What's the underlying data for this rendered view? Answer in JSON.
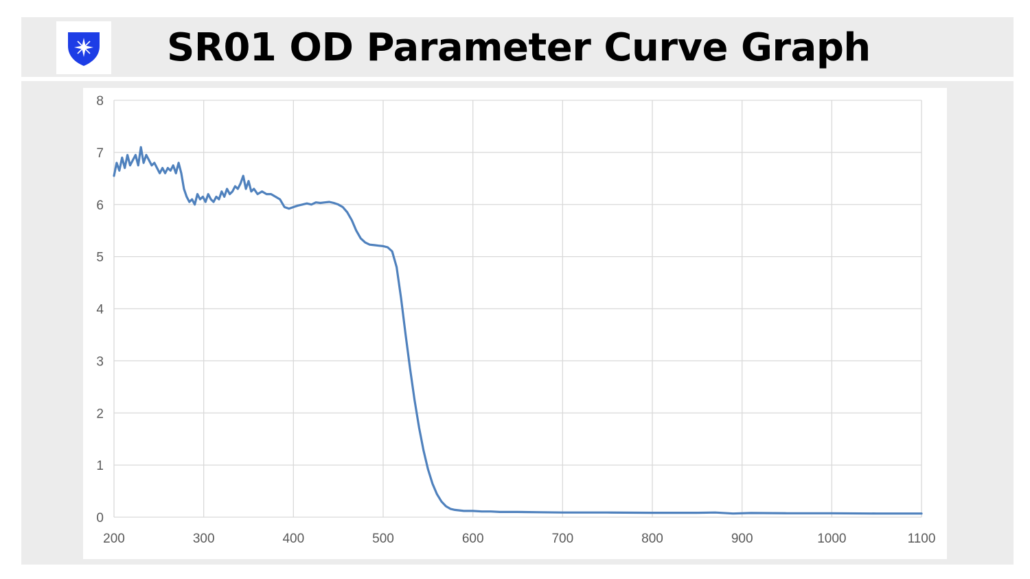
{
  "header": {
    "title": "SR01 OD Parameter Curve Graph",
    "logo_icon": "shield-sparkle-icon",
    "logo_color": "#1d3de6"
  },
  "colors": {
    "line": "#4f81bd",
    "grid": "#d9d9d9",
    "band": "#ececec"
  },
  "chart_data": {
    "type": "line",
    "title": "",
    "xlabel": "",
    "ylabel": "",
    "xlim": [
      200,
      1100
    ],
    "ylim": [
      0,
      8
    ],
    "x_ticks": [
      "200",
      "300",
      "400",
      "500",
      "600",
      "700",
      "800",
      "900",
      "1000",
      "1100"
    ],
    "y_ticks": [
      "0",
      "1",
      "2",
      "3",
      "4",
      "5",
      "6",
      "7",
      "8"
    ],
    "grid": true,
    "legend": "none",
    "series": [
      {
        "x": [
          200,
          203,
          206,
          209,
          212,
          215,
          218,
          221,
          224,
          227,
          230,
          233,
          236,
          239,
          242,
          245,
          248,
          251,
          254,
          257,
          260,
          263,
          266,
          269,
          272,
          275,
          278,
          281,
          284,
          287,
          290,
          293,
          296,
          299,
          302,
          305,
          308,
          311,
          314,
          317,
          320,
          323,
          326,
          329,
          332,
          335,
          338,
          341,
          344,
          347,
          350,
          353,
          356,
          360,
          365,
          370,
          375,
          380,
          385,
          390,
          395,
          400,
          405,
          410,
          415,
          420,
          425,
          430,
          435,
          440,
          445,
          450,
          455,
          460,
          465,
          470,
          475,
          480,
          485,
          490,
          495,
          500,
          505,
          510,
          515,
          520,
          525,
          530,
          535,
          540,
          545,
          550,
          555,
          560,
          565,
          570,
          575,
          580,
          585,
          590,
          595,
          600,
          610,
          620,
          630,
          640,
          650,
          675,
          700,
          750,
          800,
          850,
          870,
          890,
          910,
          950,
          1000,
          1050,
          1100
        ],
        "y": [
          6.55,
          6.8,
          6.65,
          6.9,
          6.7,
          6.95,
          6.75,
          6.85,
          6.95,
          6.75,
          7.1,
          6.8,
          6.95,
          6.85,
          6.75,
          6.8,
          6.7,
          6.6,
          6.7,
          6.6,
          6.7,
          6.65,
          6.75,
          6.6,
          6.8,
          6.6,
          6.3,
          6.15,
          6.05,
          6.1,
          6.0,
          6.2,
          6.1,
          6.15,
          6.05,
          6.2,
          6.1,
          6.05,
          6.15,
          6.1,
          6.25,
          6.15,
          6.3,
          6.2,
          6.25,
          6.35,
          6.3,
          6.4,
          6.55,
          6.3,
          6.45,
          6.25,
          6.3,
          6.2,
          6.25,
          6.2,
          6.2,
          6.15,
          6.1,
          5.95,
          5.92,
          5.95,
          5.98,
          6.0,
          6.02,
          6.0,
          6.04,
          6.03,
          6.04,
          6.05,
          6.03,
          6.0,
          5.95,
          5.85,
          5.7,
          5.5,
          5.35,
          5.27,
          5.23,
          5.22,
          5.21,
          5.2,
          5.18,
          5.1,
          4.8,
          4.2,
          3.5,
          2.85,
          2.25,
          1.72,
          1.28,
          0.92,
          0.64,
          0.44,
          0.3,
          0.21,
          0.16,
          0.14,
          0.13,
          0.12,
          0.12,
          0.12,
          0.11,
          0.11,
          0.1,
          0.1,
          0.1,
          0.095,
          0.09,
          0.09,
          0.085,
          0.085,
          0.09,
          0.07,
          0.08,
          0.075,
          0.075,
          0.07,
          0.07
        ]
      }
    ]
  }
}
